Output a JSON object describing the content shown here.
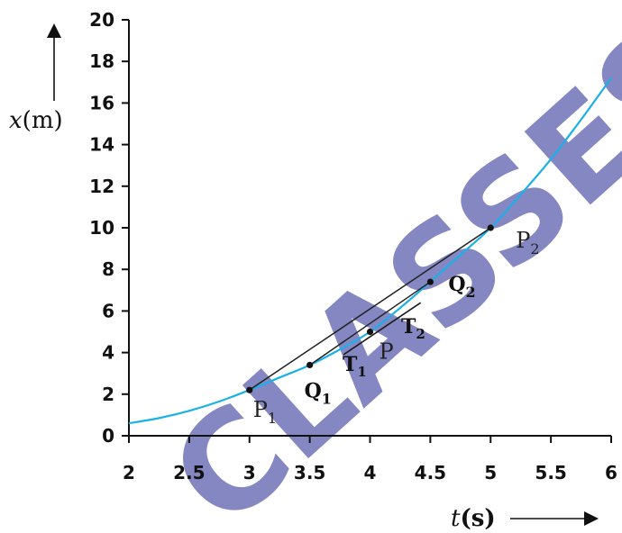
{
  "chart_data": {
    "type": "line",
    "title": "",
    "xlabel": {
      "var": "t",
      "unit": "(s)"
    },
    "ylabel": {
      "var": "x",
      "unit": "(m)"
    },
    "xlim": [
      2,
      6
    ],
    "ylim": [
      0,
      20
    ],
    "xticks": [
      2,
      2.5,
      3,
      3.5,
      4,
      4.5,
      5,
      5.5,
      6
    ],
    "yticks": [
      0,
      2,
      4,
      6,
      8,
      10,
      12,
      14,
      16,
      18,
      20
    ],
    "xtick_labels": [
      "2",
      "2.5",
      "3",
      "3.5",
      "4",
      "4.5",
      "5",
      "5.5",
      "6"
    ],
    "ytick_labels": [
      "0",
      "2",
      "4",
      "6",
      "8",
      "10",
      "12",
      "14",
      "16",
      "18",
      "20"
    ],
    "grid": false,
    "curve": {
      "color": "#1ab0e8",
      "x": [
        2.0,
        2.25,
        2.5,
        2.75,
        3.0,
        3.25,
        3.5,
        3.75,
        4.0,
        4.25,
        4.5,
        4.75,
        5.0,
        5.25,
        5.5,
        5.75,
        6.0
      ],
      "y": [
        0.6,
        0.85,
        1.2,
        1.65,
        2.2,
        2.8,
        3.4,
        4.15,
        5.0,
        6.15,
        7.4,
        8.7,
        10.0,
        11.6,
        13.3,
        15.2,
        17.2
      ]
    },
    "points": [
      {
        "label": "P",
        "sub": "1",
        "x": 3.0,
        "y": 2.2
      },
      {
        "label": "Q",
        "sub": "1",
        "x": 3.5,
        "y": 3.4
      },
      {
        "label": "P",
        "sub": "",
        "x": 4.0,
        "y": 5.0
      },
      {
        "label": "Q",
        "sub": "2",
        "x": 4.5,
        "y": 7.4
      },
      {
        "label": "P",
        "sub": "2",
        "x": 5.0,
        "y": 10.0
      }
    ],
    "tangent_labels": [
      {
        "label": "T",
        "sub": "1"
      },
      {
        "label": "T",
        "sub": "2"
      }
    ],
    "chords": [
      {
        "from": [
          3.0,
          2.2
        ],
        "to": [
          5.0,
          10.0
        ],
        "color": "#222222"
      },
      {
        "from": [
          3.5,
          3.4
        ],
        "to": [
          4.5,
          7.4
        ],
        "color": "#222222"
      }
    ],
    "tangent": {
      "from": [
        3.78,
        3.9
      ],
      "to": [
        4.42,
        6.4
      ],
      "color": "#1a1a1a"
    },
    "watermark": "CLASSES"
  }
}
